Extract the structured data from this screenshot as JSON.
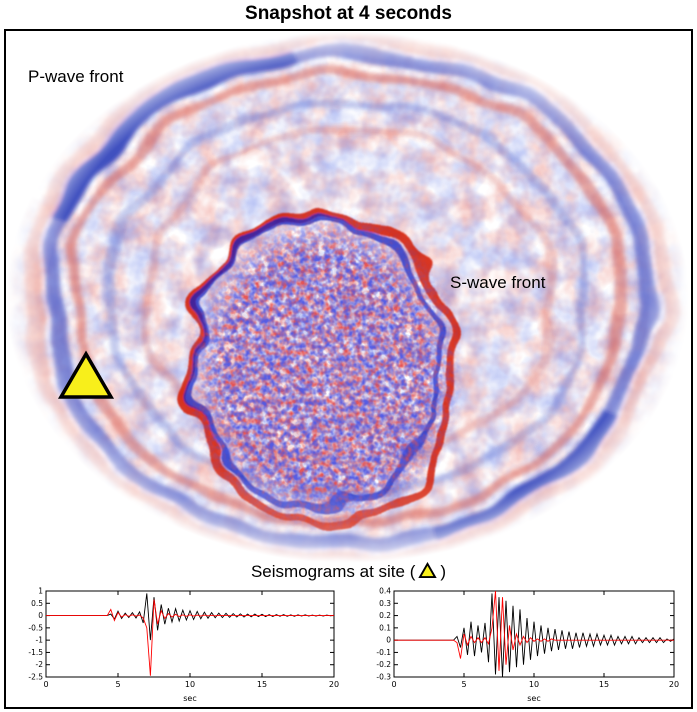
{
  "title": "Snapshot at 4 seconds",
  "wavefield": {
    "p_wave_label": "P-wave front",
    "s_wave_label": "S-wave front",
    "positive_color": "#d41607",
    "negative_color": "#1623c2",
    "background": "#ffffff"
  },
  "site_marker": {
    "fill": "#f8ef1b",
    "stroke": "#000000"
  },
  "seismograms": {
    "title_prefix": "Seismograms at site (",
    "title_suffix": ")"
  },
  "chart_data": [
    {
      "type": "line",
      "title": "",
      "xlabel": "sec",
      "ylabel": "",
      "xlim": [
        0,
        20
      ],
      "ylim": [
        -2.5,
        1
      ],
      "xticks": [
        0,
        5,
        10,
        15,
        20
      ],
      "yticks": [
        1,
        0.5,
        0,
        -0.5,
        -1,
        -1.5,
        -2,
        -2.5
      ],
      "grid": false,
      "legend": false,
      "series": [
        {
          "name": "black",
          "color": "#000000",
          "t0": 0,
          "dt": 0.25,
          "values": [
            0,
            0,
            0,
            0,
            0,
            0,
            0,
            0,
            0,
            0,
            0,
            0,
            0,
            0,
            0,
            0,
            0,
            0,
            0.06,
            -0.14,
            0.18,
            -0.12,
            0.1,
            -0.08,
            0.12,
            -0.1,
            0.15,
            -0.3,
            0.9,
            -1.0,
            0.75,
            -0.6,
            0.45,
            -0.35,
            0.3,
            -0.26,
            0.28,
            -0.22,
            0.22,
            -0.18,
            0.2,
            -0.16,
            0.17,
            -0.13,
            0.14,
            -0.11,
            0.12,
            -0.09,
            0.1,
            -0.08,
            0.09,
            -0.07,
            0.08,
            -0.06,
            0.07,
            -0.06,
            0.06,
            -0.05,
            0.06,
            -0.04,
            0.05,
            -0.04,
            0.04,
            -0.04,
            0.04,
            -0.03,
            0.04,
            -0.03,
            0.03,
            -0.03,
            0.03,
            -0.02,
            0.03,
            -0.02,
            0.02,
            -0.02,
            0.02,
            -0.02,
            0.02,
            -0.01,
            0.01
          ]
        },
        {
          "name": "red",
          "color": "#ff0000",
          "t0": 0,
          "dt": 0.25,
          "values": [
            0,
            0,
            0,
            0,
            0,
            0,
            0,
            0,
            0,
            0,
            0,
            0,
            0,
            0,
            0,
            0,
            0,
            0,
            0.25,
            -0.2,
            0.12,
            -0.06,
            0.04,
            -0.03,
            0.03,
            -0.02,
            0.02,
            -0.1,
            -0.5,
            -2.45,
            0.65,
            -0.35,
            0.2,
            -0.12,
            0.08,
            -0.06,
            0.05,
            -0.04,
            0.03,
            -0.03,
            0.03,
            -0.02,
            0.02,
            -0.02,
            0.02,
            -0.01,
            0.01,
            -0.01,
            0.01,
            0,
            0,
            0,
            0,
            0,
            0,
            0,
            0,
            0,
            0,
            0,
            0,
            0,
            0,
            0,
            0,
            0,
            0,
            0,
            0,
            0,
            0,
            0,
            0,
            0,
            0,
            0,
            0,
            0,
            0,
            0,
            0
          ]
        }
      ]
    },
    {
      "type": "line",
      "title": "",
      "xlabel": "sec",
      "ylabel": "",
      "xlim": [
        0,
        20
      ],
      "ylim": [
        -0.3,
        0.4
      ],
      "xticks": [
        0,
        5,
        10,
        15,
        20
      ],
      "yticks": [
        0.4,
        0.3,
        0.2,
        0.1,
        0,
        -0.1,
        -0.2,
        -0.3
      ],
      "grid": false,
      "legend": false,
      "series": [
        {
          "name": "black",
          "color": "#000000",
          "t0": 0,
          "dt": 0.25,
          "values": [
            0,
            0,
            0,
            0,
            0,
            0,
            0,
            0,
            0,
            0,
            0,
            0,
            0,
            0,
            0,
            0,
            0,
            0,
            0.03,
            -0.06,
            0.1,
            -0.12,
            0.15,
            -0.13,
            0.12,
            -0.1,
            0.14,
            -0.18,
            0.38,
            -0.28,
            0.35,
            -0.3,
            0.32,
            -0.26,
            0.28,
            -0.22,
            0.25,
            -0.2,
            0.18,
            -0.16,
            0.15,
            -0.13,
            0.12,
            -0.11,
            0.1,
            -0.09,
            0.09,
            -0.08,
            0.08,
            -0.07,
            0.07,
            -0.07,
            0.06,
            -0.06,
            0.06,
            -0.05,
            0.05,
            -0.05,
            0.05,
            -0.04,
            0.04,
            -0.04,
            0.04,
            -0.04,
            0.03,
            -0.03,
            0.03,
            -0.03,
            0.03,
            -0.03,
            0.02,
            -0.02,
            0.02,
            -0.02,
            0.02,
            -0.02,
            0.02,
            -0.02,
            0.01,
            -0.01,
            0.01
          ]
        },
        {
          "name": "red",
          "color": "#ff0000",
          "t0": 0,
          "dt": 0.25,
          "values": [
            0,
            0,
            0,
            0,
            0,
            0,
            0,
            0,
            0,
            0,
            0,
            0,
            0,
            0,
            0,
            0,
            0,
            0,
            -0.02,
            -0.15,
            0.05,
            -0.04,
            0.03,
            -0.02,
            0.02,
            -0.02,
            0.02,
            -0.03,
            0.1,
            0.4,
            -0.25,
            0.35,
            -0.2,
            0.12,
            -0.08,
            0.05,
            -0.04,
            0.03,
            -0.02,
            0.02,
            -0.01,
            0.01,
            -0.01,
            0.01,
            -0.01,
            0.01,
            0,
            0,
            0,
            0,
            0,
            0,
            0,
            0,
            0,
            0,
            0,
            0,
            0,
            0,
            0,
            0,
            0,
            0,
            0,
            0,
            0,
            0,
            0,
            0,
            0,
            0,
            0,
            0,
            0,
            0,
            0,
            0,
            0,
            0,
            0
          ]
        }
      ]
    }
  ]
}
